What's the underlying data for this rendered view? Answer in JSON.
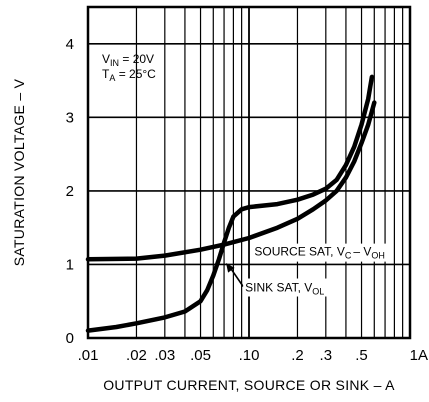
{
  "chart_data": {
    "type": "line",
    "xlabel": "OUTPUT CURRENT, SOURCE OR SINK – A",
    "ylabel": "SATURATION VOLTAGE – V",
    "x_scale": "log",
    "xlim": [
      0.01,
      1.0
    ],
    "ylim": [
      0,
      4.5
    ],
    "x_ticks": [
      {
        "v": 0.01,
        "label": ".01"
      },
      {
        "v": 0.02,
        "label": ".02"
      },
      {
        "v": 0.03,
        "label": ".03"
      },
      {
        "v": 0.05,
        "label": ".05"
      },
      {
        "v": 0.1,
        "label": ".10"
      },
      {
        "v": 0.2,
        "label": ".2"
      },
      {
        "v": 0.3,
        "label": ".3"
      },
      {
        "v": 0.5,
        "label": ".5"
      },
      {
        "v": 1.0,
        "label": "1A"
      }
    ],
    "y_ticks": [
      0,
      1,
      2,
      3,
      4
    ],
    "conditions": {
      "vin": {
        "main": "V",
        "sub": "IN",
        "rest": " = 20V"
      },
      "ta": {
        "main": "T",
        "sub": "A",
        "rest": " = 25°C"
      }
    },
    "series": [
      {
        "name": "SOURCE SAT, VC– VOH",
        "label_parts": {
          "a": "SOURCE SAT, V",
          "a_sub": "C",
          "b": "– V",
          "b_sub": "OH"
        },
        "points": [
          [
            0.01,
            1.07
          ],
          [
            0.02,
            1.08
          ],
          [
            0.03,
            1.12
          ],
          [
            0.05,
            1.2
          ],
          [
            0.07,
            1.27
          ],
          [
            0.1,
            1.36
          ],
          [
            0.15,
            1.5
          ],
          [
            0.2,
            1.62
          ],
          [
            0.25,
            1.75
          ],
          [
            0.3,
            1.87
          ],
          [
            0.35,
            2.0
          ],
          [
            0.4,
            2.18
          ],
          [
            0.45,
            2.4
          ],
          [
            0.5,
            2.65
          ],
          [
            0.55,
            2.9
          ],
          [
            0.6,
            3.2
          ]
        ]
      },
      {
        "name": "SINK SAT, VOL",
        "label_parts": {
          "a": "SINK SAT, V",
          "a_sub": "OL"
        },
        "points": [
          [
            0.01,
            0.1
          ],
          [
            0.015,
            0.15
          ],
          [
            0.02,
            0.2
          ],
          [
            0.03,
            0.28
          ],
          [
            0.04,
            0.36
          ],
          [
            0.05,
            0.5
          ],
          [
            0.055,
            0.65
          ],
          [
            0.06,
            0.85
          ],
          [
            0.065,
            1.07
          ],
          [
            0.07,
            1.3
          ],
          [
            0.075,
            1.5
          ],
          [
            0.08,
            1.65
          ],
          [
            0.09,
            1.75
          ],
          [
            0.1,
            1.78
          ],
          [
            0.15,
            1.82
          ],
          [
            0.2,
            1.88
          ],
          [
            0.25,
            1.95
          ],
          [
            0.3,
            2.03
          ],
          [
            0.35,
            2.15
          ],
          [
            0.4,
            2.35
          ],
          [
            0.45,
            2.6
          ],
          [
            0.5,
            2.9
          ],
          [
            0.55,
            3.25
          ],
          [
            0.58,
            3.55
          ]
        ]
      }
    ],
    "grid": true
  }
}
